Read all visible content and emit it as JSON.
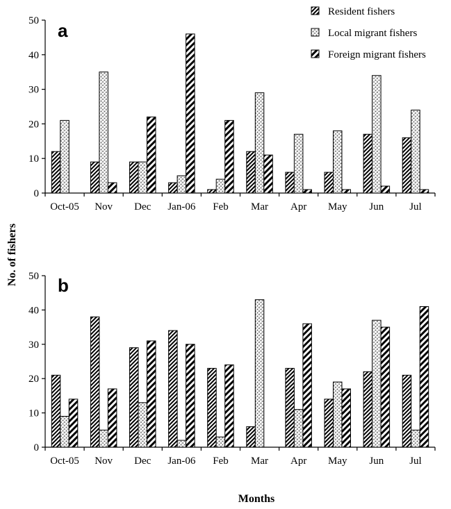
{
  "figure": {
    "ylabel": "No. of fishers",
    "xlabel": "Months"
  },
  "legend": [
    {
      "label": "Resident fishers",
      "pattern": "resident"
    },
    {
      "label": "Local migrant fishers",
      "pattern": "local"
    },
    {
      "label": "Foreign migrant fishers",
      "pattern": "foreign"
    }
  ],
  "chart_data": [
    {
      "type": "bar",
      "panel": "a",
      "categories": [
        "Oct-05",
        "Nov",
        "Dec",
        "Jan-06",
        "Feb",
        "Mar",
        "Apr",
        "May",
        "Jun",
        "Jul"
      ],
      "series": [
        {
          "name": "Resident fishers",
          "values": [
            12,
            9,
            9,
            3,
            1,
            12,
            6,
            6,
            17,
            16
          ]
        },
        {
          "name": "Local migrant fishers",
          "values": [
            21,
            35,
            9,
            5,
            4,
            29,
            17,
            18,
            34,
            24
          ]
        },
        {
          "name": "Foreign migrant fishers",
          "values": [
            0,
            3,
            22,
            46,
            21,
            11,
            1,
            1,
            2,
            1
          ]
        }
      ],
      "ylim": [
        0,
        50
      ],
      "yticks": [
        0,
        10,
        20,
        30,
        40,
        50
      ],
      "legend_position": "top-right"
    },
    {
      "type": "bar",
      "panel": "b",
      "categories": [
        "Oct-05",
        "Nov",
        "Dec",
        "Jan-06",
        "Feb",
        "Mar",
        "Apr",
        "May",
        "Jun",
        "Jul"
      ],
      "series": [
        {
          "name": "Resident fishers",
          "values": [
            21,
            38,
            29,
            34,
            23,
            6,
            23,
            14,
            22,
            21
          ]
        },
        {
          "name": "Local migrant fishers",
          "values": [
            9,
            5,
            13,
            2,
            3,
            43,
            11,
            19,
            37,
            5
          ]
        },
        {
          "name": "Foreign migrant fishers",
          "values": [
            14,
            17,
            31,
            30,
            24,
            0,
            36,
            17,
            35,
            41
          ]
        }
      ],
      "ylim": [
        0,
        50
      ],
      "yticks": [
        0,
        10,
        20,
        30,
        40,
        50
      ]
    }
  ]
}
